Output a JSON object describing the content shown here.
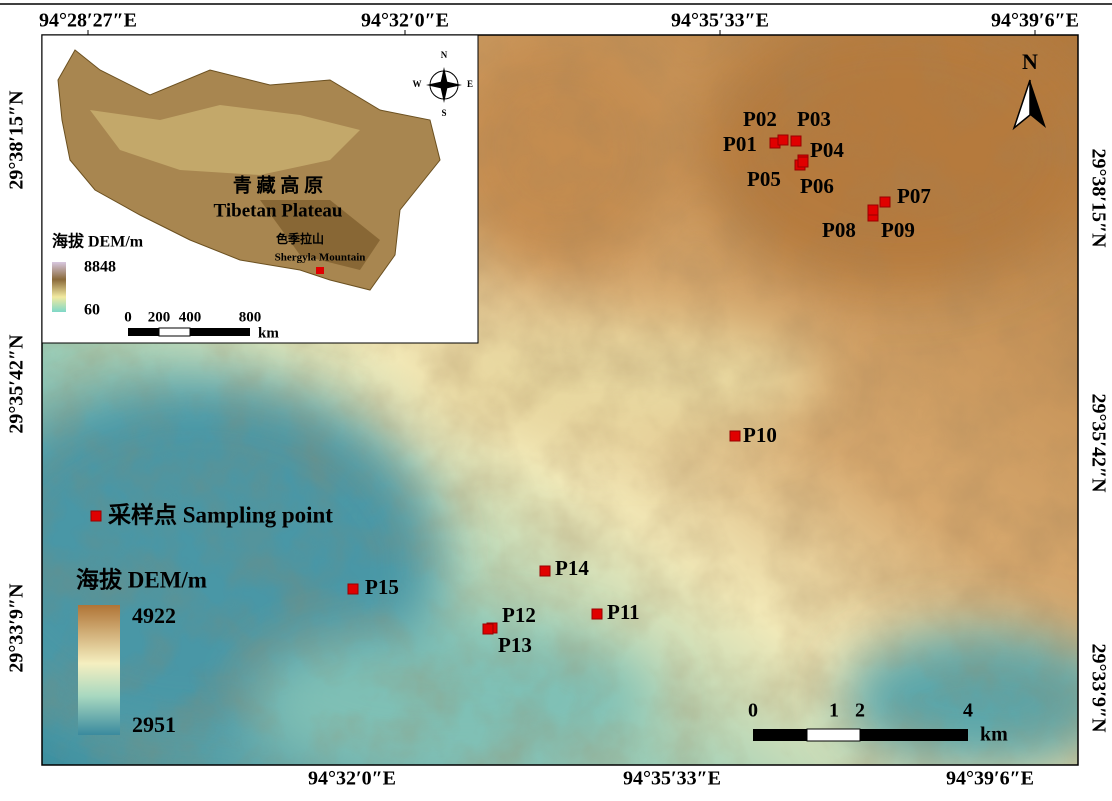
{
  "coordinates": {
    "top": [
      "94°28′27″E",
      "94°32′0″E",
      "94°35′33″E",
      "94°39′6″E"
    ],
    "bottom": [
      "94°32′0″E",
      "94°35′33″E",
      "94°39′6″E"
    ],
    "left": [
      "29°38′15″N",
      "29°35′42″N",
      "29°33′9″N"
    ],
    "right": [
      "29°38′15″N",
      "29°35′42″N",
      "29°33′9″N"
    ]
  },
  "north": "N",
  "inset": {
    "title_cn": "青 藏 高 原",
    "title_en": "Tibetan Plateau",
    "site_cn": "色季拉山",
    "site_en": "Shergyla Mountain",
    "legend_title": "海拔 DEM/m",
    "legend_max": "8848",
    "legend_min": "60",
    "scale_labels": [
      "0",
      "200",
      "400",
      "800"
    ],
    "scale_unit": "km",
    "compass": [
      "N",
      "E",
      "S",
      "W"
    ]
  },
  "legend": {
    "point_label": "采样点 Sampling point",
    "dem_title": "海拔 DEM/m",
    "dem_max": "4922",
    "dem_min": "2951"
  },
  "scale_bar": {
    "labels": [
      "0",
      "1",
      "2",
      "4"
    ],
    "unit": "km"
  },
  "points": [
    "P01",
    "P02",
    "P03",
    "P04",
    "P05",
    "P06",
    "P07",
    "P08",
    "P09",
    "P10",
    "P11",
    "P12",
    "P13",
    "P14",
    "P15"
  ]
}
